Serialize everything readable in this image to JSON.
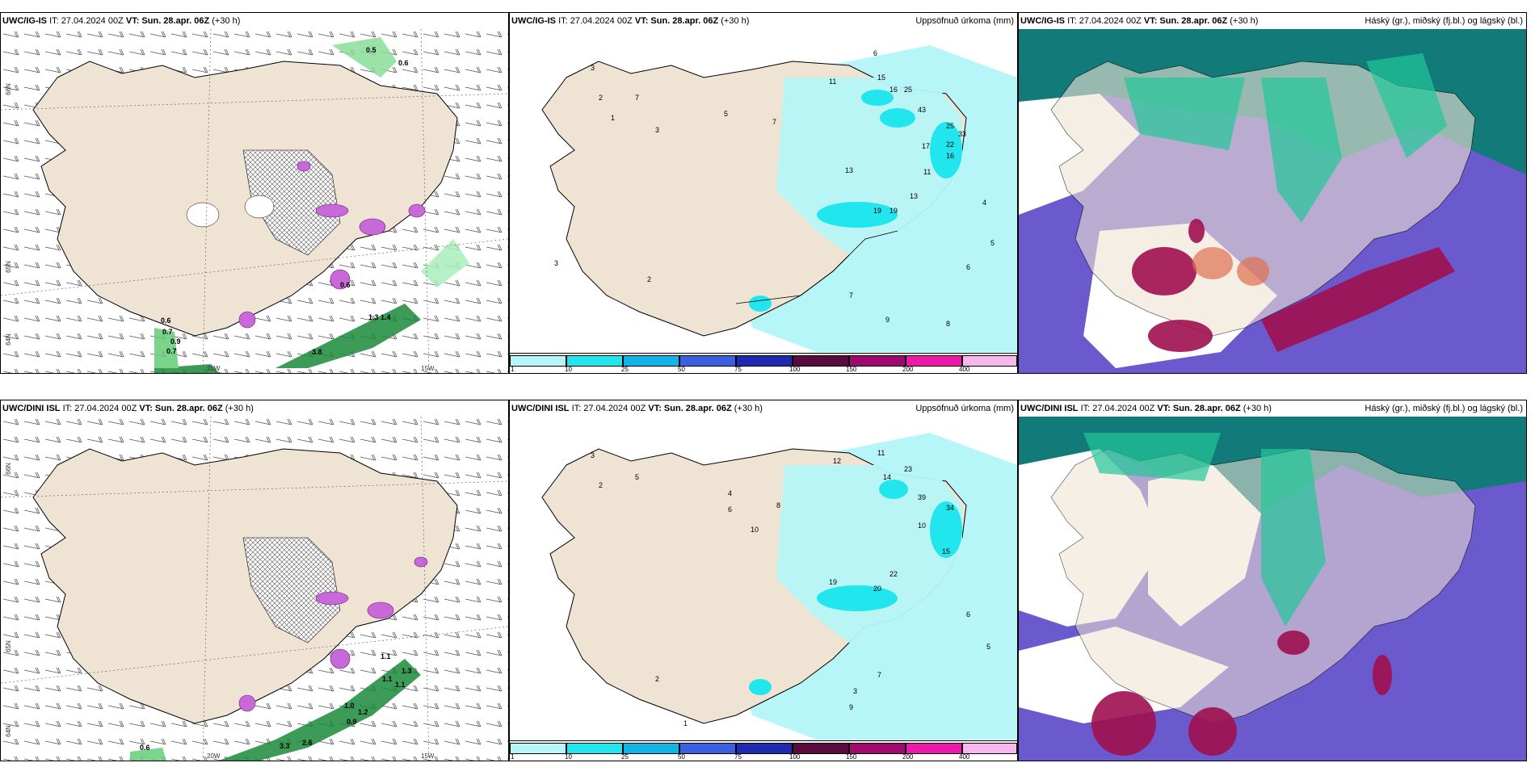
{
  "panels": [
    {
      "model": "UWC/IG-IS",
      "it": "IT: 27.04.2024 00Z",
      "vt_label": "VT:",
      "vt": "Sun. 28.apr. 06Z",
      "lead": "(+30 h)",
      "right": ""
    },
    {
      "model": "UWC/IG-IS",
      "it": "IT: 27.04.2024 00Z",
      "vt_label": "VT:",
      "vt": "Sun. 28.apr. 06Z",
      "lead": "(+30 h)",
      "right": "Uppsöfnuð úrkoma (mm)"
    },
    {
      "model": "UWC/IG-IS",
      "it": "IT: 27.04.2024 00Z",
      "vt_label": "VT:",
      "vt": "Sun. 28.apr. 06Z",
      "lead": "(+30 h)",
      "right": "Háský (gr.), miðský (fj.bl.) og lágský (bl.)"
    },
    {
      "model": "UWC/DINI ISL",
      "it": "IT: 27.04.2024 00Z",
      "vt_label": "VT:",
      "vt": "Sun. 28.apr. 06Z",
      "lead": "(+30 h)",
      "right": ""
    },
    {
      "model": "UWC/DINI ISL",
      "it": "IT: 27.04.2024 00Z",
      "vt_label": "VT:",
      "vt": "Sun. 28.apr. 06Z",
      "lead": "(+30 h)",
      "right": "Uppsöfnuð úrkoma (mm)"
    },
    {
      "model": "UWC/DINI ISL",
      "it": "IT: 27.04.2024 00Z",
      "vt_label": "VT:",
      "vt": "Sun. 28.apr. 06Z",
      "lead": "(+30 h)",
      "right": "Háský (gr.), miðský (fj.bl.) og lágský (bl.)"
    }
  ],
  "coords": {
    "lat66": "66N",
    "lat64": "64N",
    "lat65": "65N",
    "lon20": "20W",
    "lon15": "15W",
    "lon25": "25W"
  },
  "colorbar": {
    "ticks": [
      "1",
      "10",
      "25",
      "50",
      "75",
      "100",
      "150",
      "200",
      "400"
    ],
    "colors": [
      "#b6f5f8",
      "#22e6ee",
      "#10b4e6",
      "#3a5fe0",
      "#1f2ab0",
      "#5a0a3c",
      "#a00a6e",
      "#ee18aa",
      "#f6b6ee"
    ]
  },
  "snow_labels_top": [
    "0.5",
    "0.6",
    "0.7",
    "0.9",
    "0.7",
    "0.6",
    "1.3",
    "1.4",
    "3.8",
    "0.6"
  ],
  "snow_labels_bot": [
    "1.1",
    "1.0",
    "1.2",
    "0.9",
    "1.1",
    "1.3",
    "1.1",
    "3.3",
    "2.6",
    "0.6"
  ],
  "precip_top": [
    "2",
    "3",
    "1",
    "3",
    "7",
    "5",
    "7",
    "13",
    "11",
    "6",
    "19",
    "15",
    "25",
    "16",
    "43",
    "25",
    "33",
    "22",
    "17",
    "13",
    "16",
    "11",
    "19",
    "4",
    "3",
    "2",
    "6",
    "5",
    "8",
    "9",
    "7"
  ],
  "precip_bot": [
    "2",
    "3",
    "5",
    "4",
    "6",
    "10",
    "12",
    "11",
    "14",
    "23",
    "39",
    "34",
    "15",
    "19",
    "22",
    "20",
    "10",
    "8",
    "6",
    "7",
    "9",
    "3",
    "2",
    "1",
    "5"
  ],
  "colors": {
    "land": "#efe3d3",
    "sea_precip": "#b6f5f8",
    "precip_mid": "#22e6ee",
    "snow": "#1a8a3a",
    "cloud_high": "#16a07a",
    "cloud_mid": "#6a5acd",
    "cloud_low": "#a01050"
  }
}
